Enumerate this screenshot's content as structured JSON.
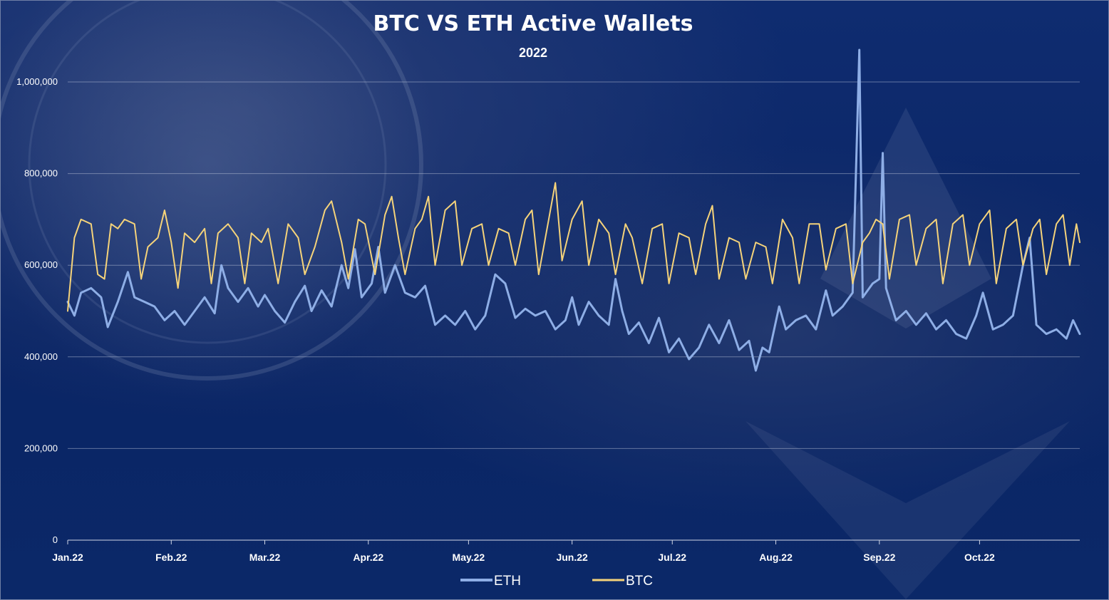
{
  "chart_data": {
    "type": "line",
    "title": "BTC VS ETH Active Wallets",
    "subtitle": "2022",
    "xlabel": "",
    "ylabel": "",
    "ylim": [
      0,
      1100000
    ],
    "yticks": [
      0,
      200000,
      400000,
      600000,
      800000,
      1000000
    ],
    "ytick_labels": [
      "0",
      "200,000",
      "400,000",
      "600,000",
      "800,000",
      "1,000,000"
    ],
    "x_range": [
      "2022-01-01",
      "2022-10-31"
    ],
    "xtick_dates": [
      "2022-01-01",
      "2022-02-01",
      "2022-03-01",
      "2022-04-01",
      "2022-05-01",
      "2022-06-01",
      "2022-07-01",
      "2022-08-01",
      "2022-09-01",
      "2022-10-01"
    ],
    "xtick_labels": [
      "Jan.22",
      "Feb.22",
      "Mar.22",
      "Apr.22",
      "May.22",
      "Jun.22",
      "Jul.22",
      "Aug.22",
      "Sep.22",
      "Oct.22"
    ],
    "grid": true,
    "legend_position": "bottom",
    "series": [
      {
        "name": "ETH",
        "color": "#8eaee6",
        "points": [
          [
            "2022-01-01",
            520000
          ],
          [
            "2022-01-03",
            490000
          ],
          [
            "2022-01-05",
            540000
          ],
          [
            "2022-01-08",
            550000
          ],
          [
            "2022-01-11",
            530000
          ],
          [
            "2022-01-13",
            465000
          ],
          [
            "2022-01-16",
            520000
          ],
          [
            "2022-01-19",
            585000
          ],
          [
            "2022-01-21",
            530000
          ],
          [
            "2022-01-24",
            520000
          ],
          [
            "2022-01-27",
            510000
          ],
          [
            "2022-01-30",
            480000
          ],
          [
            "2022-02-02",
            500000
          ],
          [
            "2022-02-05",
            470000
          ],
          [
            "2022-02-08",
            500000
          ],
          [
            "2022-02-11",
            530000
          ],
          [
            "2022-02-14",
            495000
          ],
          [
            "2022-02-16",
            600000
          ],
          [
            "2022-02-18",
            550000
          ],
          [
            "2022-02-21",
            520000
          ],
          [
            "2022-02-24",
            550000
          ],
          [
            "2022-02-27",
            510000
          ],
          [
            "2022-03-01",
            535000
          ],
          [
            "2022-03-04",
            500000
          ],
          [
            "2022-03-07",
            475000
          ],
          [
            "2022-03-10",
            520000
          ],
          [
            "2022-03-13",
            555000
          ],
          [
            "2022-03-15",
            500000
          ],
          [
            "2022-03-18",
            545000
          ],
          [
            "2022-03-21",
            510000
          ],
          [
            "2022-03-24",
            600000
          ],
          [
            "2022-03-26",
            550000
          ],
          [
            "2022-03-28",
            635000
          ],
          [
            "2022-03-30",
            530000
          ],
          [
            "2022-04-02",
            560000
          ],
          [
            "2022-04-04",
            640000
          ],
          [
            "2022-04-06",
            540000
          ],
          [
            "2022-04-09",
            600000
          ],
          [
            "2022-04-12",
            540000
          ],
          [
            "2022-04-15",
            530000
          ],
          [
            "2022-04-18",
            555000
          ],
          [
            "2022-04-21",
            470000
          ],
          [
            "2022-04-24",
            490000
          ],
          [
            "2022-04-27",
            470000
          ],
          [
            "2022-04-30",
            500000
          ],
          [
            "2022-05-03",
            460000
          ],
          [
            "2022-05-06",
            490000
          ],
          [
            "2022-05-09",
            580000
          ],
          [
            "2022-05-12",
            560000
          ],
          [
            "2022-05-15",
            485000
          ],
          [
            "2022-05-18",
            505000
          ],
          [
            "2022-05-21",
            490000
          ],
          [
            "2022-05-24",
            500000
          ],
          [
            "2022-05-27",
            460000
          ],
          [
            "2022-05-30",
            480000
          ],
          [
            "2022-06-01",
            530000
          ],
          [
            "2022-06-03",
            470000
          ],
          [
            "2022-06-06",
            520000
          ],
          [
            "2022-06-09",
            490000
          ],
          [
            "2022-06-12",
            470000
          ],
          [
            "2022-06-14",
            570000
          ],
          [
            "2022-06-16",
            500000
          ],
          [
            "2022-06-18",
            450000
          ],
          [
            "2022-06-21",
            475000
          ],
          [
            "2022-06-24",
            430000
          ],
          [
            "2022-06-27",
            485000
          ],
          [
            "2022-06-30",
            410000
          ],
          [
            "2022-07-03",
            440000
          ],
          [
            "2022-07-06",
            395000
          ],
          [
            "2022-07-09",
            420000
          ],
          [
            "2022-07-12",
            470000
          ],
          [
            "2022-07-15",
            430000
          ],
          [
            "2022-07-18",
            480000
          ],
          [
            "2022-07-21",
            415000
          ],
          [
            "2022-07-24",
            435000
          ],
          [
            "2022-07-26",
            370000
          ],
          [
            "2022-07-28",
            420000
          ],
          [
            "2022-07-30",
            410000
          ],
          [
            "2022-08-02",
            510000
          ],
          [
            "2022-08-04",
            460000
          ],
          [
            "2022-08-07",
            480000
          ],
          [
            "2022-08-10",
            490000
          ],
          [
            "2022-08-13",
            460000
          ],
          [
            "2022-08-16",
            545000
          ],
          [
            "2022-08-18",
            490000
          ],
          [
            "2022-08-21",
            510000
          ],
          [
            "2022-08-24",
            540000
          ],
          [
            "2022-08-26",
            1070000
          ],
          [
            "2022-08-27",
            530000
          ],
          [
            "2022-08-30",
            560000
          ],
          [
            "2022-09-01",
            570000
          ],
          [
            "2022-09-02",
            845000
          ],
          [
            "2022-09-03",
            550000
          ],
          [
            "2022-09-06",
            480000
          ],
          [
            "2022-09-09",
            500000
          ],
          [
            "2022-09-12",
            470000
          ],
          [
            "2022-09-15",
            495000
          ],
          [
            "2022-09-18",
            460000
          ],
          [
            "2022-09-21",
            480000
          ],
          [
            "2022-09-24",
            450000
          ],
          [
            "2022-09-27",
            440000
          ],
          [
            "2022-09-30",
            490000
          ],
          [
            "2022-10-02",
            540000
          ],
          [
            "2022-10-05",
            460000
          ],
          [
            "2022-10-08",
            470000
          ],
          [
            "2022-10-11",
            490000
          ],
          [
            "2022-10-14",
            600000
          ],
          [
            "2022-10-16",
            660000
          ],
          [
            "2022-10-18",
            470000
          ],
          [
            "2022-10-21",
            450000
          ],
          [
            "2022-10-24",
            460000
          ],
          [
            "2022-10-27",
            440000
          ],
          [
            "2022-10-29",
            480000
          ],
          [
            "2022-10-31",
            450000
          ]
        ]
      },
      {
        "name": "BTC",
        "color": "#f5d37a",
        "points": [
          [
            "2022-01-01",
            500000
          ],
          [
            "2022-01-03",
            660000
          ],
          [
            "2022-01-05",
            700000
          ],
          [
            "2022-01-08",
            690000
          ],
          [
            "2022-01-10",
            580000
          ],
          [
            "2022-01-12",
            570000
          ],
          [
            "2022-01-14",
            690000
          ],
          [
            "2022-01-16",
            680000
          ],
          [
            "2022-01-18",
            700000
          ],
          [
            "2022-01-21",
            690000
          ],
          [
            "2022-01-23",
            570000
          ],
          [
            "2022-01-25",
            640000
          ],
          [
            "2022-01-28",
            660000
          ],
          [
            "2022-01-30",
            720000
          ],
          [
            "2022-02-01",
            650000
          ],
          [
            "2022-02-03",
            550000
          ],
          [
            "2022-02-05",
            670000
          ],
          [
            "2022-02-08",
            650000
          ],
          [
            "2022-02-11",
            680000
          ],
          [
            "2022-02-13",
            560000
          ],
          [
            "2022-02-15",
            670000
          ],
          [
            "2022-02-18",
            690000
          ],
          [
            "2022-02-21",
            660000
          ],
          [
            "2022-02-23",
            560000
          ],
          [
            "2022-02-25",
            670000
          ],
          [
            "2022-02-28",
            650000
          ],
          [
            "2022-03-02",
            680000
          ],
          [
            "2022-03-05",
            560000
          ],
          [
            "2022-03-08",
            690000
          ],
          [
            "2022-03-11",
            660000
          ],
          [
            "2022-03-13",
            580000
          ],
          [
            "2022-03-16",
            640000
          ],
          [
            "2022-03-19",
            720000
          ],
          [
            "2022-03-21",
            740000
          ],
          [
            "2022-03-24",
            650000
          ],
          [
            "2022-03-26",
            570000
          ],
          [
            "2022-03-29",
            700000
          ],
          [
            "2022-03-31",
            690000
          ],
          [
            "2022-04-03",
            580000
          ],
          [
            "2022-04-06",
            710000
          ],
          [
            "2022-04-08",
            750000
          ],
          [
            "2022-04-10",
            660000
          ],
          [
            "2022-04-12",
            580000
          ],
          [
            "2022-04-15",
            680000
          ],
          [
            "2022-04-17",
            700000
          ],
          [
            "2022-04-19",
            750000
          ],
          [
            "2022-04-21",
            600000
          ],
          [
            "2022-04-24",
            720000
          ],
          [
            "2022-04-27",
            740000
          ],
          [
            "2022-04-29",
            600000
          ],
          [
            "2022-05-02",
            680000
          ],
          [
            "2022-05-05",
            690000
          ],
          [
            "2022-05-07",
            600000
          ],
          [
            "2022-05-10",
            680000
          ],
          [
            "2022-05-13",
            670000
          ],
          [
            "2022-05-15",
            600000
          ],
          [
            "2022-05-18",
            700000
          ],
          [
            "2022-05-20",
            720000
          ],
          [
            "2022-05-22",
            580000
          ],
          [
            "2022-05-25",
            700000
          ],
          [
            "2022-05-27",
            780000
          ],
          [
            "2022-05-29",
            610000
          ],
          [
            "2022-06-01",
            700000
          ],
          [
            "2022-06-04",
            740000
          ],
          [
            "2022-06-06",
            600000
          ],
          [
            "2022-06-09",
            700000
          ],
          [
            "2022-06-12",
            670000
          ],
          [
            "2022-06-14",
            580000
          ],
          [
            "2022-06-17",
            690000
          ],
          [
            "2022-06-19",
            660000
          ],
          [
            "2022-06-22",
            560000
          ],
          [
            "2022-06-25",
            680000
          ],
          [
            "2022-06-28",
            690000
          ],
          [
            "2022-06-30",
            560000
          ],
          [
            "2022-07-03",
            670000
          ],
          [
            "2022-07-06",
            660000
          ],
          [
            "2022-07-08",
            580000
          ],
          [
            "2022-07-11",
            690000
          ],
          [
            "2022-07-13",
            730000
          ],
          [
            "2022-07-15",
            570000
          ],
          [
            "2022-07-18",
            660000
          ],
          [
            "2022-07-21",
            650000
          ],
          [
            "2022-07-23",
            570000
          ],
          [
            "2022-07-26",
            650000
          ],
          [
            "2022-07-29",
            640000
          ],
          [
            "2022-07-31",
            560000
          ],
          [
            "2022-08-03",
            700000
          ],
          [
            "2022-08-06",
            660000
          ],
          [
            "2022-08-08",
            560000
          ],
          [
            "2022-08-11",
            690000
          ],
          [
            "2022-08-14",
            690000
          ],
          [
            "2022-08-16",
            590000
          ],
          [
            "2022-08-19",
            680000
          ],
          [
            "2022-08-22",
            690000
          ],
          [
            "2022-08-24",
            560000
          ],
          [
            "2022-08-27",
            650000
          ],
          [
            "2022-08-29",
            670000
          ],
          [
            "2022-08-31",
            700000
          ],
          [
            "2022-09-02",
            690000
          ],
          [
            "2022-09-04",
            570000
          ],
          [
            "2022-09-07",
            700000
          ],
          [
            "2022-09-10",
            710000
          ],
          [
            "2022-09-12",
            600000
          ],
          [
            "2022-09-15",
            680000
          ],
          [
            "2022-09-18",
            700000
          ],
          [
            "2022-09-20",
            560000
          ],
          [
            "2022-09-23",
            690000
          ],
          [
            "2022-09-26",
            710000
          ],
          [
            "2022-09-28",
            600000
          ],
          [
            "2022-10-01",
            690000
          ],
          [
            "2022-10-04",
            720000
          ],
          [
            "2022-10-06",
            560000
          ],
          [
            "2022-10-09",
            680000
          ],
          [
            "2022-10-12",
            700000
          ],
          [
            "2022-10-14",
            600000
          ],
          [
            "2022-10-17",
            680000
          ],
          [
            "2022-10-19",
            700000
          ],
          [
            "2022-10-21",
            580000
          ],
          [
            "2022-10-24",
            690000
          ],
          [
            "2022-10-26",
            710000
          ],
          [
            "2022-10-28",
            600000
          ],
          [
            "2022-10-30",
            690000
          ],
          [
            "2022-10-31",
            650000
          ]
        ]
      }
    ]
  }
}
